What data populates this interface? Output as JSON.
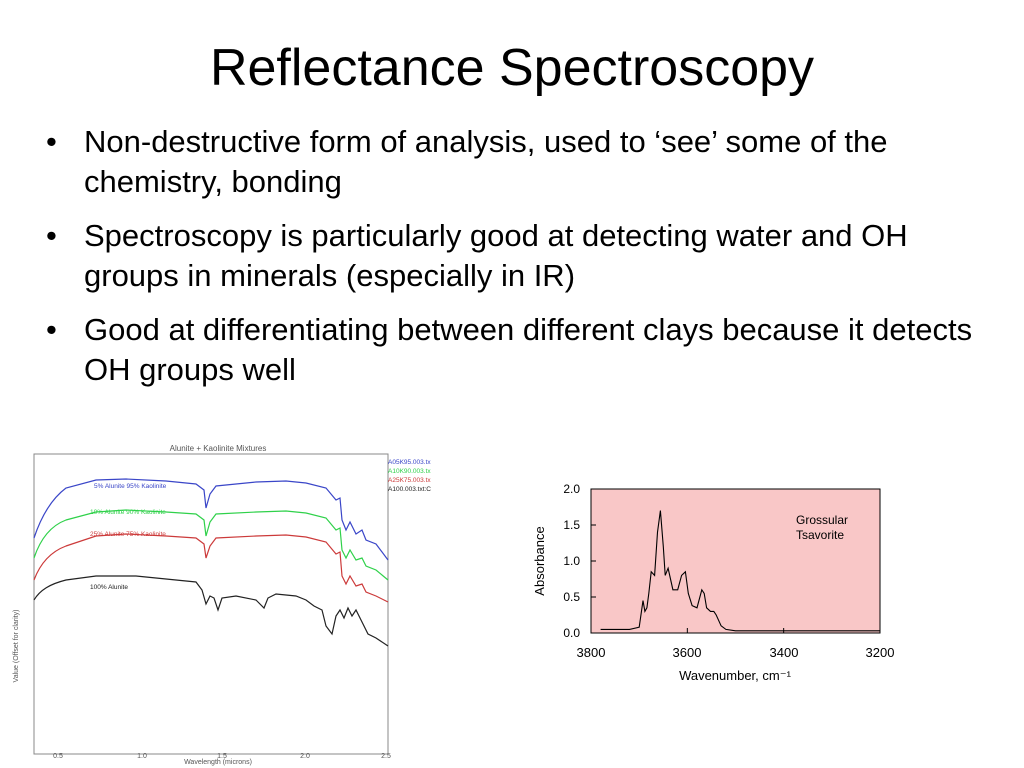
{
  "slide": {
    "title": "Reflectance Spectroscopy",
    "bullets": [
      "Non-destructive form of analysis, used to ‘see’ some of the chemistry, bonding",
      "Spectroscopy is particularly good at detecting water and OH groups in minerals (especially in IR)",
      "Good at differentiating between different clays because it detects OH groups well"
    ]
  },
  "chart_data": [
    {
      "type": "line",
      "title": "Alunite + Kaolinite Mixtures",
      "xlabel": "Wavelength (microns)",
      "ylabel": "Value (Offset for clarity)",
      "xlim": [
        0.4,
        2.5
      ],
      "x_ticks": [
        "0.5",
        "1.0",
        "1.5",
        "2.0",
        "2.5"
      ],
      "legend": [
        "A05K95.003.tx",
        "A10K90.003.tx",
        "A25K75.003.tx",
        "A100.003.txt:C"
      ],
      "legend_position": "top-right",
      "series_colors": [
        "#3a46c8",
        "#2fd14a",
        "#cc3a3a",
        "#222222"
      ],
      "series": [
        {
          "name": "5% Alunite 95% Kaolinite"
        },
        {
          "name": "10% Alunite 90% Kaolinite"
        },
        {
          "name": "25% Alunite 75% Kaolinite"
        },
        {
          "name": "100% Alunite"
        }
      ]
    },
    {
      "type": "line",
      "xlabel": "Wavenumber, cm⁻¹",
      "ylabel": "Absorbance",
      "xlim": [
        3800,
        3200
      ],
      "ylim": [
        0.0,
        2.0
      ],
      "x_ticks": [
        "3800",
        "3600",
        "3400",
        "3200"
      ],
      "y_ticks": [
        "0.0",
        "0.5",
        "1.0",
        "1.5",
        "2.0"
      ],
      "annotation": [
        "Grossular",
        "Tsavorite"
      ],
      "background_color": "#f9c7c7",
      "series": [
        {
          "x": [
            3780,
            3720,
            3700,
            3692,
            3688,
            3684,
            3680,
            3675,
            3668,
            3662,
            3656,
            3650,
            3646,
            3640,
            3630,
            3620,
            3612,
            3604,
            3598,
            3590,
            3580,
            3570,
            3565,
            3560,
            3552,
            3545,
            3540,
            3530,
            3520,
            3500,
            3450,
            3400,
            3300,
            3200
          ],
          "y": [
            0.05,
            0.05,
            0.08,
            0.45,
            0.3,
            0.35,
            0.55,
            0.85,
            0.8,
            1.4,
            1.7,
            1.2,
            0.8,
            0.9,
            0.6,
            0.6,
            0.8,
            0.85,
            0.55,
            0.38,
            0.35,
            0.6,
            0.55,
            0.35,
            0.3,
            0.3,
            0.25,
            0.1,
            0.05,
            0.03,
            0.03,
            0.03,
            0.03,
            0.03
          ]
        }
      ]
    }
  ]
}
